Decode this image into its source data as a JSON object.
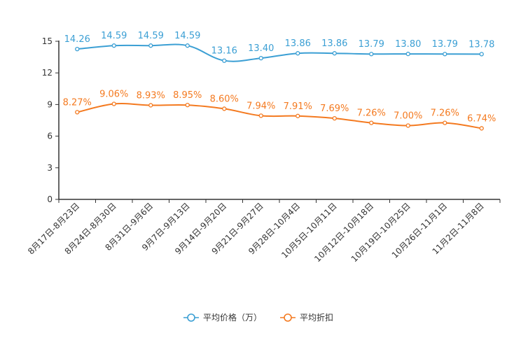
{
  "chart_data": {
    "type": "line",
    "title": "",
    "xlabel": "",
    "ylabel": "",
    "ylim": [
      0,
      15
    ],
    "yticks": [
      0,
      3,
      6,
      9,
      12,
      15
    ],
    "grid": false,
    "legend_position": "bottom-center",
    "categories": [
      "8月17日-8月23日",
      "8月24日-8月30日",
      "8月31日-9月6日",
      "9月7日-9月13日",
      "9月14日-9月20日",
      "9月21日-9月27日",
      "9月28日-10月4日",
      "10月5日-10月11日",
      "10月12日-10月18日",
      "10月19日-10月25日",
      "10月26日-11月1日",
      "11月2日-11月8日"
    ],
    "series": [
      {
        "name": "平均价格（万）",
        "color": "#3b9fd4",
        "values": [
          14.26,
          14.59,
          14.59,
          14.59,
          13.16,
          13.4,
          13.86,
          13.86,
          13.79,
          13.8,
          13.79,
          13.78
        ],
        "labels": [
          "14.26",
          "14.59",
          "14.59",
          "14.59",
          "13.16",
          "13.40",
          "13.86",
          "13.86",
          "13.79",
          "13.80",
          "13.79",
          "13.78"
        ]
      },
      {
        "name": "平均折扣",
        "color": "#f47a20",
        "values": [
          8.27,
          9.06,
          8.93,
          8.95,
          8.6,
          7.94,
          7.91,
          7.69,
          7.26,
          7.0,
          7.26,
          6.74
        ],
        "labels": [
          "8.27%",
          "9.06%",
          "8.93%",
          "8.95%",
          "8.60%",
          "7.94%",
          "7.91%",
          "7.69%",
          "7.26%",
          "7.00%",
          "7.26%",
          "6.74%"
        ]
      }
    ]
  }
}
